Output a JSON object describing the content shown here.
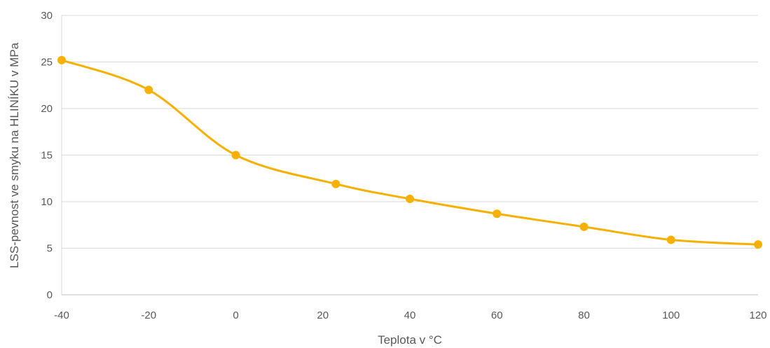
{
  "chart_data": {
    "type": "line",
    "title": "",
    "xlabel": "Teplota v  °C",
    "ylabel": "LSS-pevnost ve smyku na HLINÍKU v MPa",
    "xlim": [
      -40,
      120
    ],
    "ylim": [
      0,
      30
    ],
    "x_ticks": [
      -40,
      -20,
      0,
      20,
      40,
      60,
      80,
      100,
      120
    ],
    "y_ticks": [
      0,
      5,
      10,
      15,
      20,
      25,
      30
    ],
    "grid": true,
    "smooth": true,
    "series": [
      {
        "color": "#f5b000",
        "x": [
          -40,
          -20,
          0,
          23,
          40,
          60,
          80,
          100,
          120
        ],
        "y": [
          25.2,
          22,
          15,
          11.9,
          10.3,
          8.7,
          7.3,
          5.9,
          5.4
        ]
      }
    ]
  }
}
